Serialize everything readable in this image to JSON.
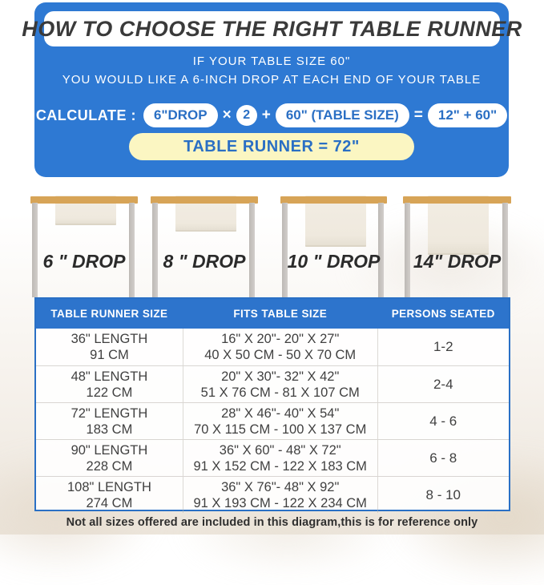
{
  "header": {
    "title": "HOW TO CHOOSE THE RIGHT TABLE RUNNER",
    "subtitle_line1": "IF YOUR TABLE SIZE 60\"",
    "subtitle_line2": "YOU WOULD LIKE A 6-INCH DROP AT EACH END OF YOUR TABLE",
    "calc": {
      "label": "CALCULATE :",
      "pill_drop": "6\"DROP",
      "op_multiply": "×",
      "factor": "2",
      "op_plus": "+",
      "pill_table_size": "60\"  (TABLE SIZE)",
      "op_equals": "=",
      "pill_result": "12\" + 60\"",
      "runner_result": "TABLE RUNNER = 72\""
    }
  },
  "drops": [
    {
      "label": "6 \" DROP"
    },
    {
      "label": "8 \" DROP"
    },
    {
      "label": "10 \" DROP"
    },
    {
      "label": "14\" DROP"
    }
  ],
  "size_table": {
    "columns": [
      "TABLE RUNNER SIZE",
      "FITS TABLE SIZE",
      "PERSONS SEATED"
    ],
    "rows": [
      {
        "runner_size_in": "36\" LENGTH",
        "runner_size_cm": "91 CM",
        "fits_in": "16\" X 20\"- 20\" X 27\"",
        "fits_cm": "40 X 50 CM - 50 X 70 CM",
        "persons": "1-2"
      },
      {
        "runner_size_in": "48\" LENGTH",
        "runner_size_cm": "122 CM",
        "fits_in": "20\" X 30\"- 32\" X 42\"",
        "fits_cm": "51 X 76 CM - 81 X 107 CM",
        "persons": "2-4"
      },
      {
        "runner_size_in": "72\" LENGTH",
        "runner_size_cm": "183 CM",
        "fits_in": "28\" X 46\"- 40\" X 54\"",
        "fits_cm": "70 X 115 CM - 100 X 137 CM",
        "persons": "4 - 6"
      },
      {
        "runner_size_in": "90\" LENGTH",
        "runner_size_cm": "228 CM",
        "fits_in": "36\" X 60\" - 48\" X 72\"",
        "fits_cm": "91 X 152 CM - 122 X 183 CM",
        "persons": "6 - 8"
      },
      {
        "runner_size_in": "108\" LENGTH",
        "runner_size_cm": "274 CM",
        "fits_in": "36\" X 76\"- 48\" X 92\"",
        "fits_cm": "91 X 193 CM - 122 X 234 CM",
        "persons": "8 - 10"
      }
    ]
  },
  "note": "Not all sizes offered are included in this diagram,this is for reference only",
  "colors": {
    "panel_blue": "#2e79d3",
    "table_header_blue": "#2d74cc",
    "pill_text_blue": "#2a6fc4",
    "result_yellow": "#fbf6c2",
    "tabletop_tan": "#d7a457",
    "runner_cream": "#f1ece2"
  }
}
